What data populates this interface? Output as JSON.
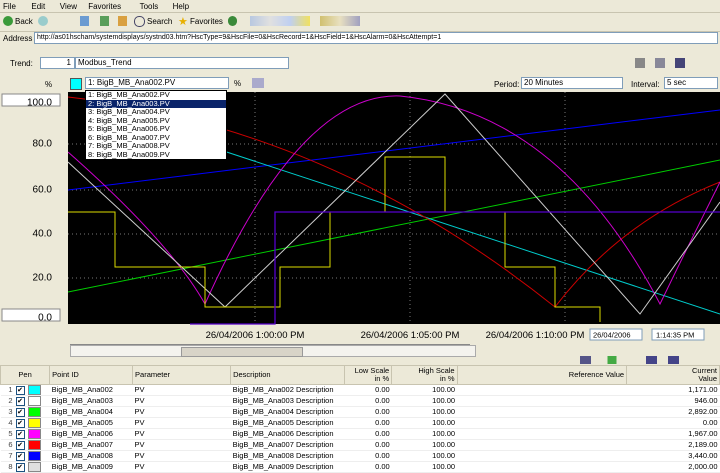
{
  "menu": [
    "File",
    "Edit",
    "View",
    "Favorites",
    "Tools",
    "Help"
  ],
  "toolbar": {
    "back": "Back",
    "search": "Search",
    "favorites": "Favorites"
  },
  "address": {
    "label": "Address",
    "url": "http://as01hscham/systemdisplays/systnd03.htm?HscType=9&HscFile=0&HscRecord=1&HscField=1&HscAlarm=0&HscAttempt=1"
  },
  "trend": {
    "label": "Trend:",
    "number": "1",
    "name": "Modbus_Trend"
  },
  "pen_row": {
    "unit": "%",
    "point": "1: BigB_MB_Ana002.PV",
    "unit_menu": "%",
    "period_label": "Period:",
    "period": "20 Minutes",
    "interval_label": "Interval:",
    "interval": "5 sec"
  },
  "dropdown": [
    "1: BigB_MB_Ana002.PV",
    "2: BigB_MB_Ana003.PV",
    "3: BigB_MB_Ana004.PV",
    "4: BigB_MB_Ana005.PV",
    "5: BigB_MB_Ana006.PV",
    "6: BigB_MB_Ana007.PV",
    "7: BigB_MB_Ana008.PV",
    "8: BigB_MB_Ana009.PV"
  ],
  "y_axis": [
    "100.0",
    "80.0",
    "60.0",
    "40.0",
    "20.0",
    "0.0"
  ],
  "x_axis": [
    "26/04/2006 1:00:00 PM",
    "26/04/2006 1:05:00 PM",
    "26/04/2006 1:10:00 PM"
  ],
  "date": "26/04/2006",
  "time": "1:14:35 PM",
  "table": {
    "headers": [
      [
        "Pen"
      ],
      [
        "Point ID"
      ],
      [
        "Parameter"
      ],
      [
        "Description"
      ],
      [
        "Low Scale",
        "in %"
      ],
      [
        "High Scale",
        "in %"
      ],
      [
        "Reference Value"
      ],
      [
        "Current",
        "Value"
      ]
    ],
    "rows": [
      {
        "n": "1",
        "color": "#00ffff",
        "point": "BigB_MB_Ana002",
        "parameter": "PV",
        "description": "BigB_MB_Ana002 Description",
        "low": "0.00",
        "high": "100.00",
        "current": "1,171.00"
      },
      {
        "n": "2",
        "color": "#ffffff",
        "point": "BigB_MB_Ana003",
        "parameter": "PV",
        "description": "BigB_MB_Ana003 Description",
        "low": "0.00",
        "high": "100.00",
        "current": "946.00"
      },
      {
        "n": "3",
        "color": "#00ff00",
        "point": "BigB_MB_Ana004",
        "parameter": "PV",
        "description": "BigB_MB_Ana004 Description",
        "low": "0.00",
        "high": "100.00",
        "current": "2,892.00"
      },
      {
        "n": "4",
        "color": "#ffff00",
        "point": "BigB_MB_Ana005",
        "parameter": "PV",
        "description": "BigB_MB_Ana005 Description",
        "low": "0.00",
        "high": "100.00",
        "current": "0.00"
      },
      {
        "n": "5",
        "color": "#ff00ff",
        "point": "BigB_MB_Ana006",
        "parameter": "PV",
        "description": "BigB_MB_Ana006 Description",
        "low": "0.00",
        "high": "100.00",
        "current": "1,967.00"
      },
      {
        "n": "6",
        "color": "#ff0000",
        "point": "BigB_MB_Ana007",
        "parameter": "PV",
        "description": "BigB_MB_Ana007 Description",
        "low": "0.00",
        "high": "100.00",
        "current": "2,189.00"
      },
      {
        "n": "7",
        "color": "#0000ff",
        "point": "BigB_MB_Ana008",
        "parameter": "PV",
        "description": "BigB_MB_Ana008 Description",
        "low": "0.00",
        "high": "100.00",
        "current": "3,440.00"
      },
      {
        "n": "8",
        "color": "#e0e0e0",
        "point": "BigB_MB_Ana009",
        "parameter": "PV",
        "description": "BigB_MB_Ana009 Description",
        "low": "0.00",
        "high": "100.00",
        "current": "2,000.00"
      }
    ]
  }
}
